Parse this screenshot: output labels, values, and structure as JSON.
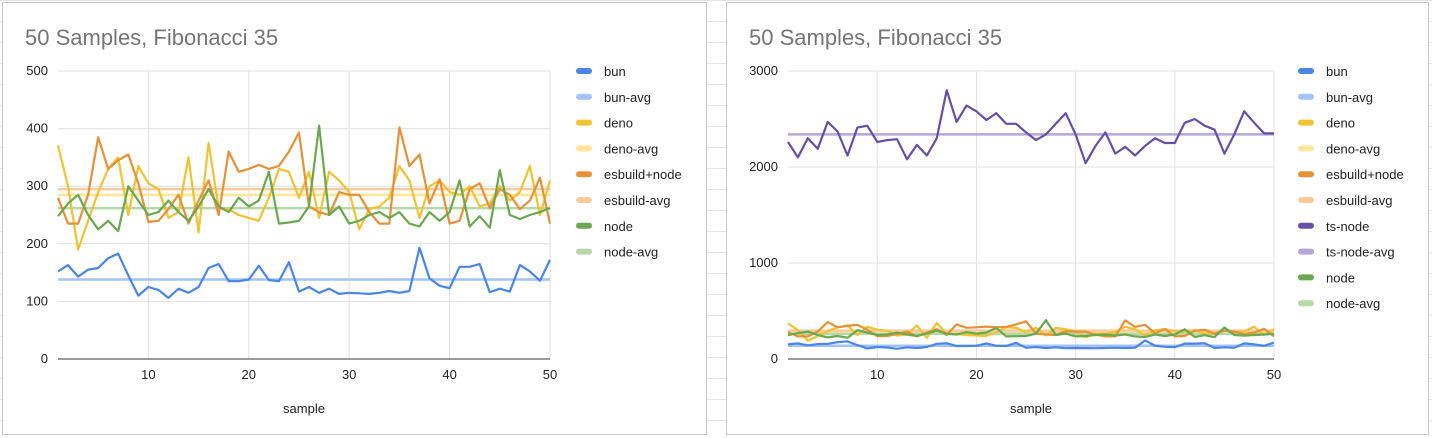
{
  "colors": {
    "bun": "#4a86e8",
    "bun-avg": "#a4c2f4",
    "deno": "#f1c232",
    "deno-avg": "#ffe599",
    "esbuild+node": "#e69138",
    "esbuild-avg": "#f9cb9c",
    "ts-node": "#674ea7",
    "ts-node-avg": "#b4a7d6",
    "node": "#6aa84f",
    "node-avg": "#b6d7a8",
    "grid": "#e0e0e0",
    "axis": "#333333"
  },
  "chart_data": [
    {
      "type": "line",
      "title": "50 Samples, Fibonacci 35",
      "xlabel": "sample",
      "ylabel": "",
      "xlim": [
        1,
        50
      ],
      "ylim": [
        0,
        500
      ],
      "x_ticks": [
        10,
        20,
        30,
        40,
        50
      ],
      "y_ticks": [
        0,
        100,
        200,
        300,
        400,
        500
      ],
      "legend_position": "right",
      "series": [
        {
          "name": "bun",
          "values": [
            152,
            163,
            143,
            155,
            158,
            175,
            183,
            145,
            110,
            125,
            120,
            106,
            122,
            115,
            125,
            158,
            165,
            135,
            135,
            138,
            162,
            137,
            135,
            168,
            117,
            125,
            115,
            122,
            113,
            115,
            114,
            113,
            115,
            118,
            115,
            118,
            193,
            140,
            127,
            123,
            160,
            160,
            165,
            116,
            122,
            117,
            163,
            152,
            136,
            172
          ]
        },
        {
          "name": "bun-avg",
          "avg": 138
        },
        {
          "name": "deno",
          "values": [
            371,
            300,
            190,
            240,
            290,
            330,
            350,
            250,
            335,
            305,
            295,
            245,
            255,
            350,
            220,
            375,
            262,
            260,
            250,
            245,
            240,
            280,
            330,
            325,
            280,
            325,
            245,
            325,
            310,
            290,
            225,
            260,
            265,
            280,
            335,
            310,
            245,
            300,
            310,
            290,
            285,
            300,
            265,
            270,
            300,
            275,
            290,
            335,
            250,
            310
          ]
        },
        {
          "name": "deno-avg",
          "avg": 285
        },
        {
          "name": "esbuild+node",
          "values": [
            280,
            235,
            235,
            285,
            385,
            330,
            345,
            355,
            305,
            238,
            240,
            260,
            285,
            235,
            275,
            310,
            250,
            360,
            325,
            330,
            337,
            330,
            335,
            360,
            393,
            265,
            255,
            250,
            290,
            285,
            285,
            255,
            235,
            235,
            402,
            335,
            355,
            270,
            312,
            235,
            240,
            295,
            305,
            262,
            295,
            285,
            260,
            275,
            315,
            235
          ]
        },
        {
          "name": "esbuild-avg",
          "avg": 295
        },
        {
          "name": "node",
          "values": [
            248,
            270,
            285,
            250,
            225,
            240,
            222,
            300,
            275,
            250,
            255,
            275,
            255,
            240,
            265,
            295,
            265,
            255,
            280,
            265,
            275,
            325,
            235,
            237,
            240,
            265,
            405,
            250,
            265,
            235,
            240,
            250,
            255,
            245,
            255,
            235,
            230,
            255,
            240,
            255,
            310,
            230,
            248,
            228,
            328,
            250,
            243,
            250,
            255,
            262
          ]
        },
        {
          "name": "node-avg",
          "avg": 262
        }
      ]
    },
    {
      "type": "line",
      "title": "50 Samples, Fibonacci 35",
      "xlabel": "sample",
      "ylabel": "",
      "xlim": [
        1,
        50
      ],
      "ylim": [
        0,
        3000
      ],
      "x_ticks": [
        10,
        20,
        30,
        40,
        50
      ],
      "y_ticks": [
        0,
        1000,
        2000,
        3000
      ],
      "legend_position": "right",
      "series": [
        {
          "name": "bun",
          "values": [
            152,
            163,
            143,
            155,
            158,
            175,
            183,
            145,
            110,
            125,
            120,
            106,
            122,
            115,
            125,
            158,
            165,
            135,
            135,
            138,
            162,
            137,
            135,
            168,
            117,
            125,
            115,
            122,
            113,
            115,
            114,
            113,
            115,
            118,
            115,
            118,
            193,
            140,
            127,
            123,
            160,
            160,
            165,
            116,
            122,
            117,
            163,
            152,
            136,
            172
          ]
        },
        {
          "name": "bun-avg",
          "avg": 138
        },
        {
          "name": "deno",
          "values": [
            371,
            300,
            190,
            240,
            290,
            330,
            350,
            250,
            335,
            305,
            295,
            245,
            255,
            350,
            220,
            375,
            262,
            260,
            250,
            245,
            240,
            280,
            330,
            325,
            280,
            325,
            245,
            325,
            310,
            290,
            225,
            260,
            265,
            280,
            335,
            310,
            245,
            300,
            310,
            290,
            285,
            300,
            265,
            270,
            300,
            275,
            290,
            335,
            250,
            310
          ]
        },
        {
          "name": "deno-avg",
          "avg": 285
        },
        {
          "name": "esbuild+node",
          "values": [
            280,
            235,
            235,
            285,
            385,
            330,
            345,
            355,
            305,
            238,
            240,
            260,
            285,
            235,
            275,
            310,
            250,
            360,
            325,
            330,
            337,
            330,
            335,
            360,
            393,
            265,
            255,
            250,
            290,
            285,
            285,
            255,
            235,
            235,
            402,
            335,
            355,
            270,
            312,
            235,
            240,
            295,
            305,
            262,
            295,
            285,
            260,
            275,
            315,
            235
          ]
        },
        {
          "name": "esbuild-avg",
          "avg": 295
        },
        {
          "name": "ts-node",
          "values": [
            2260,
            2100,
            2300,
            2190,
            2470,
            2370,
            2120,
            2410,
            2430,
            2260,
            2280,
            2290,
            2080,
            2230,
            2120,
            2300,
            2800,
            2470,
            2640,
            2580,
            2490,
            2560,
            2450,
            2450,
            2360,
            2280,
            2340,
            2450,
            2560,
            2340,
            2040,
            2220,
            2360,
            2140,
            2210,
            2120,
            2220,
            2300,
            2250,
            2250,
            2460,
            2500,
            2430,
            2390,
            2140,
            2340,
            2580,
            2460,
            2350,
            2350
          ]
        },
        {
          "name": "ts-node-avg",
          "avg": 2340
        },
        {
          "name": "node",
          "values": [
            248,
            270,
            285,
            250,
            225,
            240,
            222,
            300,
            275,
            250,
            255,
            275,
            255,
            240,
            265,
            295,
            265,
            255,
            280,
            265,
            275,
            325,
            235,
            237,
            240,
            265,
            405,
            250,
            265,
            235,
            240,
            250,
            255,
            245,
            255,
            235,
            230,
            255,
            240,
            255,
            310,
            230,
            248,
            228,
            328,
            250,
            243,
            250,
            255,
            262
          ]
        },
        {
          "name": "node-avg",
          "avg": 262
        }
      ]
    }
  ]
}
